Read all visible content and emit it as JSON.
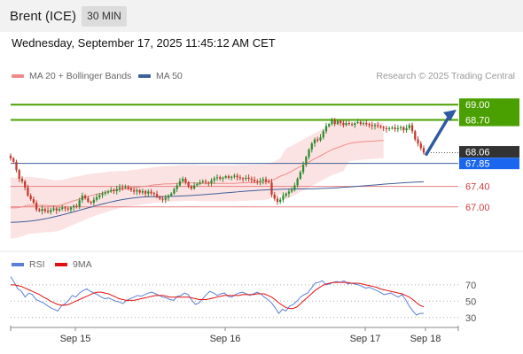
{
  "header": {
    "title": "Brent (ICE)",
    "timeframe": "30 MIN"
  },
  "datetime": "Wednesday, September 17, 2025 11:45:12 AM CET",
  "legend": {
    "ma20_label": "MA 20 + Bollinger Bands",
    "ma20_color": "#f08a8a",
    "ma50_label": "MA 50",
    "ma50_color": "#3d5f9b"
  },
  "credit": "Research © 2025 Trading Central",
  "rsi_legend": {
    "rsi_label": "RSI",
    "rsi_color": "#5b7fd6",
    "ma9_label": "9MA",
    "ma9_color": "#e01010"
  },
  "colors": {
    "resistance": "#4aa000",
    "support": "#e88080",
    "pivot": "#3d5f9b",
    "current": "#1a66ee",
    "last": "#333333",
    "bull": "#2e8b2e",
    "bear": "#c0392b",
    "arrow": "#2d5aa0"
  },
  "chart_data": [
    {
      "type": "candlestick",
      "ylim": [
        66.2,
        69.35
      ],
      "x_tick_labels": [
        "Sep 15",
        "Sep 16",
        "Sep 17",
        "Sep 18"
      ],
      "levels": [
        {
          "value": 69.0,
          "label": "69.00",
          "kind": "resistance"
        },
        {
          "value": 68.7,
          "label": "68.70",
          "kind": "resistance"
        },
        {
          "value": 68.06,
          "label": "68.06",
          "kind": "last"
        },
        {
          "value": 67.85,
          "label": "67.85",
          "kind": "pivot"
        },
        {
          "value": 67.4,
          "label": "67.40",
          "kind": "support"
        },
        {
          "value": 67.0,
          "label": "67.00",
          "kind": "support"
        }
      ],
      "close": [
        67.95,
        67.88,
        67.72,
        67.55,
        67.5,
        67.38,
        67.22,
        67.15,
        67.08,
        66.95,
        66.92,
        66.96,
        66.92,
        66.9,
        66.94,
        66.97,
        66.93,
        66.96,
        66.99,
        66.97,
        66.95,
        66.99,
        67.02,
        67.0,
        67.13,
        67.22,
        67.17,
        67.1,
        67.08,
        67.14,
        67.19,
        67.23,
        67.26,
        67.28,
        67.3,
        67.33,
        67.31,
        67.35,
        67.38,
        67.37,
        67.39,
        67.36,
        67.33,
        67.3,
        67.33,
        67.28,
        67.31,
        67.26,
        67.3,
        67.27,
        67.25,
        67.2,
        67.16,
        67.14,
        67.18,
        67.22,
        67.26,
        67.35,
        67.42,
        67.5,
        67.55,
        67.48,
        67.4,
        67.36,
        67.42,
        67.45,
        67.48,
        67.5,
        67.48,
        67.46,
        67.52,
        67.56,
        67.58,
        67.55,
        67.57,
        67.6,
        67.57,
        67.59,
        67.61,
        67.58,
        67.56,
        67.55,
        67.57,
        67.55,
        67.53,
        67.5,
        67.49,
        67.51,
        67.54,
        67.5,
        67.48,
        67.24,
        67.16,
        67.1,
        67.14,
        67.22,
        67.26,
        67.3,
        67.33,
        67.42,
        67.55,
        67.68,
        67.82,
        67.98,
        68.12,
        68.24,
        68.32,
        68.3,
        68.36,
        68.48,
        68.58,
        68.62,
        68.7,
        68.62,
        68.68,
        68.64,
        68.6,
        68.64,
        68.62,
        68.6,
        68.64,
        68.66,
        68.62,
        68.64,
        68.62,
        68.6,
        68.58,
        68.6,
        68.58,
        68.56,
        68.54,
        68.52,
        68.54,
        68.55,
        68.52,
        68.54,
        68.56,
        68.5,
        68.54,
        68.6,
        68.48,
        68.32,
        68.24,
        68.15,
        68.06
      ],
      "ma20": [
        66.98,
        66.98,
        67.0,
        67.03,
        67.03,
        67.03,
        67.03,
        67.02,
        67.02,
        67.04,
        67.08,
        67.12,
        67.15,
        67.19,
        67.22,
        67.25,
        67.27,
        67.3,
        67.32,
        67.34,
        67.35,
        67.37,
        67.38,
        67.4,
        67.41,
        67.43,
        67.44,
        67.45,
        67.45,
        67.46,
        67.47,
        67.47,
        67.47,
        67.46,
        67.46,
        67.46,
        67.46,
        67.46,
        67.46,
        67.46,
        67.47,
        67.47,
        67.48,
        67.48,
        67.48,
        67.5,
        67.54,
        67.6,
        67.64,
        67.7,
        67.76,
        67.82,
        67.88,
        67.94,
        68.0,
        68.06,
        68.12,
        68.16,
        68.2,
        68.24,
        68.26,
        68.28,
        68.3
      ],
      "ma20_x": [
        0,
        2,
        4,
        6,
        8,
        10,
        12,
        14,
        16,
        18,
        20,
        22,
        24,
        26,
        28,
        30,
        32,
        34,
        36,
        38,
        40,
        42,
        44,
        46,
        48,
        50,
        52,
        54,
        56,
        58,
        60,
        62,
        64,
        66,
        68,
        70,
        72,
        74,
        76,
        78,
        80,
        82,
        84,
        86,
        88,
        90,
        92,
        94,
        96,
        98,
        100,
        102,
        104,
        106,
        108,
        110,
        112,
        114,
        116,
        118,
        120,
        124,
        130
      ],
      "ma50": [
        66.7,
        67.2,
        67.35,
        67.5
      ],
      "ma50_x": [
        0,
        50,
        100,
        152
      ]
    },
    {
      "type": "line",
      "name": "RSI",
      "ylim": [
        20,
        85
      ],
      "y_ticks": [
        70,
        50,
        30
      ],
      "rsi": [
        80,
        73,
        65,
        62,
        55,
        60,
        58,
        52,
        50,
        48,
        45,
        42,
        40,
        38,
        44,
        47,
        51,
        57,
        55,
        60,
        63,
        65,
        62,
        60,
        58,
        55,
        53,
        54,
        52,
        50,
        49,
        47,
        51,
        53,
        55,
        57,
        56,
        58,
        60,
        61,
        59,
        57,
        55,
        54,
        52,
        51,
        56,
        57,
        60,
        58,
        51,
        46,
        48,
        53,
        58,
        62,
        60,
        57,
        59,
        60,
        56,
        55,
        58,
        60,
        61,
        59,
        57,
        59,
        61,
        59,
        55,
        52,
        48,
        42,
        35,
        40,
        38,
        44,
        46,
        50,
        55,
        58,
        60,
        66,
        72,
        73,
        75,
        70,
        71,
        73,
        74,
        73,
        75,
        71,
        72,
        71,
        70,
        68,
        66,
        67,
        65,
        63,
        61,
        58,
        59,
        60,
        57,
        55,
        58,
        52,
        44,
        38,
        33,
        35,
        35
      ],
      "ma9": [
        70,
        70,
        69,
        68,
        66,
        64,
        62,
        60,
        58,
        55,
        53,
        50,
        48,
        46,
        45,
        45,
        46,
        48,
        50,
        52,
        54,
        56,
        58,
        60,
        61,
        61,
        60,
        59,
        57,
        55,
        53,
        52,
        51,
        51,
        51,
        52,
        53,
        54,
        55,
        56,
        57,
        57,
        57,
        56,
        55,
        55,
        55,
        55,
        55,
        55,
        54,
        53,
        52,
        52,
        52,
        53,
        54,
        55,
        56,
        57,
        57,
        57,
        57,
        57,
        58,
        58,
        58,
        58,
        59,
        59,
        59,
        57,
        55,
        52,
        48,
        45,
        42,
        41,
        41,
        43,
        47,
        51,
        55,
        59,
        63,
        66,
        69,
        71,
        72,
        73,
        73,
        73,
        73,
        73,
        72,
        72,
        72,
        71,
        70,
        69,
        68,
        67,
        65,
        64,
        63,
        62,
        61,
        60,
        59,
        57,
        55,
        52,
        48,
        45,
        43
      ]
    }
  ]
}
